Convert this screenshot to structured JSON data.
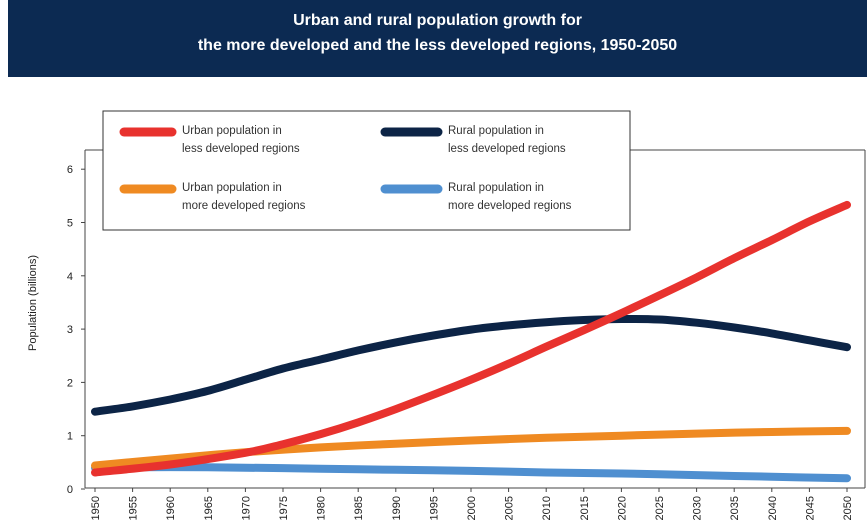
{
  "header": {
    "title_line1": "Urban and rural population growth for",
    "title_line2": "the more developed and the less developed regions, 1950-2050"
  },
  "chart_data": {
    "type": "line",
    "title": "Urban and rural population growth for the more developed and the less developed regions, 1950-2050",
    "ylabel": "Population (billions)",
    "xlabel": "",
    "ylim": [
      0,
      6
    ],
    "yticks": [
      0,
      1,
      2,
      3,
      4,
      5,
      6
    ],
    "xlim": [
      1950,
      2050
    ],
    "xticks": [
      1950,
      1955,
      1960,
      1965,
      1970,
      1975,
      1980,
      1985,
      1990,
      1995,
      2000,
      2005,
      2010,
      2015,
      2020,
      2025,
      2030,
      2035,
      2040,
      2045,
      2050
    ],
    "grid": false,
    "legend_position": "top-left",
    "series": [
      {
        "name_line1": "Urban population in",
        "name_line2": "less developed regions",
        "color": "#e8322e",
        "x": [
          1950,
          1960,
          1970,
          1975,
          1980,
          1985,
          1990,
          1995,
          2000,
          2005,
          2010,
          2015,
          2020,
          2025,
          2030,
          2035,
          2040,
          2045,
          2050
        ],
        "y": [
          0.31,
          0.46,
          0.68,
          0.84,
          1.03,
          1.25,
          1.5,
          1.77,
          2.05,
          2.35,
          2.67,
          2.98,
          3.3,
          3.63,
          3.97,
          4.33,
          4.67,
          5.02,
          5.33
        ]
      },
      {
        "name_line1": "Rural population in",
        "name_line2": "less developed regions",
        "color": "#0c2446",
        "x": [
          1950,
          1955,
          1960,
          1965,
          1970,
          1975,
          1980,
          1985,
          1990,
          1995,
          2000,
          2005,
          2010,
          2015,
          2020,
          2025,
          2030,
          2035,
          2040,
          2045,
          2050
        ],
        "y": [
          1.45,
          1.55,
          1.68,
          1.84,
          2.05,
          2.26,
          2.43,
          2.6,
          2.75,
          2.88,
          2.99,
          3.07,
          3.13,
          3.17,
          3.19,
          3.18,
          3.12,
          3.03,
          2.92,
          2.79,
          2.66
        ]
      },
      {
        "name_line1": "Urban population in",
        "name_line2": "more developed regions",
        "color": "#ef8a22",
        "x": [
          1950,
          1960,
          1970,
          1980,
          1990,
          2000,
          2010,
          2020,
          2030,
          2040,
          2050
        ],
        "y": [
          0.44,
          0.57,
          0.69,
          0.78,
          0.85,
          0.91,
          0.96,
          1.0,
          1.04,
          1.07,
          1.09
        ]
      },
      {
        "name_line1": "Rural population in",
        "name_line2": "more developed regions",
        "color": "#4f8fd0",
        "x": [
          1950,
          1960,
          1970,
          1980,
          1990,
          2000,
          2010,
          2020,
          2030,
          2040,
          2050
        ],
        "y": [
          0.4,
          0.41,
          0.4,
          0.38,
          0.36,
          0.34,
          0.31,
          0.29,
          0.26,
          0.23,
          0.2
        ]
      }
    ]
  }
}
